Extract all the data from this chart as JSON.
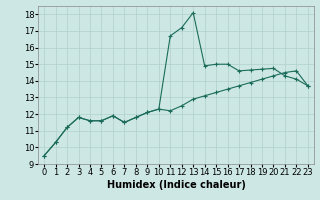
{
  "title": "",
  "xlabel": "Humidex (Indice chaleur)",
  "background_color": "#cde8e4",
  "grid_color": "#b0d0cc",
  "line_color": "#1a6b5a",
  "xlim": [
    -0.5,
    23.5
  ],
  "ylim": [
    9,
    18.5
  ],
  "yticks": [
    9,
    10,
    11,
    12,
    13,
    14,
    15,
    16,
    17,
    18
  ],
  "xticks": [
    0,
    1,
    2,
    3,
    4,
    5,
    6,
    7,
    8,
    9,
    10,
    11,
    12,
    13,
    14,
    15,
    16,
    17,
    18,
    19,
    20,
    21,
    22,
    23
  ],
  "line1_x": [
    0,
    1,
    2,
    3,
    4,
    5,
    6,
    7,
    8,
    9,
    10,
    11,
    12,
    13,
    14,
    15,
    16,
    17,
    18,
    19,
    20,
    21,
    22,
    23
  ],
  "line1_y": [
    9.5,
    10.3,
    11.2,
    11.8,
    11.6,
    11.6,
    11.9,
    11.5,
    11.8,
    12.1,
    12.3,
    12.2,
    12.5,
    12.9,
    13.1,
    13.3,
    13.5,
    13.7,
    13.9,
    14.1,
    14.3,
    14.5,
    14.6,
    13.7
  ],
  "line2_x": [
    0,
    1,
    2,
    3,
    4,
    5,
    6,
    7,
    8,
    9,
    10,
    11,
    12,
    13,
    14,
    15,
    16,
    17,
    18,
    19,
    20,
    21,
    22,
    23
  ],
  "line2_y": [
    9.5,
    10.3,
    11.2,
    11.8,
    11.6,
    11.6,
    11.9,
    11.5,
    11.8,
    12.1,
    12.3,
    16.7,
    17.2,
    18.1,
    14.9,
    15.0,
    15.0,
    14.6,
    14.65,
    14.7,
    14.75,
    14.3,
    14.1,
    13.7
  ],
  "marker": "+",
  "markersize": 3,
  "linewidth": 0.8,
  "xlabel_fontsize": 7,
  "tick_fontsize": 6
}
